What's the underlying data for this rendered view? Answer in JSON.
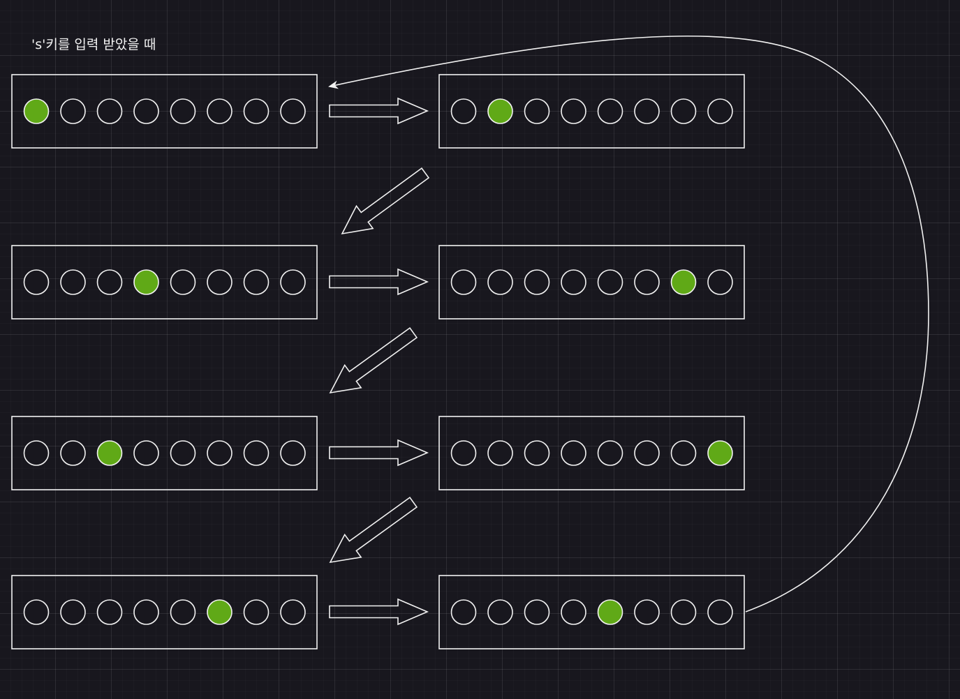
{
  "title": "'s'키를 입력 받았을 때",
  "led_count": 8,
  "colors": {
    "background": "#18171e",
    "line": "#f2f2f2",
    "led_on": "#60a917",
    "led_on_stroke": "#2d7600",
    "led_off": "#18171e"
  },
  "panels": [
    {
      "id": "step-1",
      "active_led": 1
    },
    {
      "id": "step-2",
      "active_led": 2
    },
    {
      "id": "step-3",
      "active_led": 4
    },
    {
      "id": "step-4",
      "active_led": 7
    },
    {
      "id": "step-5",
      "active_led": 3
    },
    {
      "id": "step-6",
      "active_led": 8
    },
    {
      "id": "step-7",
      "active_led": 6
    },
    {
      "id": "step-8",
      "active_led": 5
    }
  ],
  "flow": [
    {
      "from": "step-1",
      "to": "step-2"
    },
    {
      "from": "step-2",
      "to": "step-3"
    },
    {
      "from": "step-3",
      "to": "step-4"
    },
    {
      "from": "step-4",
      "to": "step-5"
    },
    {
      "from": "step-5",
      "to": "step-6"
    },
    {
      "from": "step-6",
      "to": "step-7"
    },
    {
      "from": "step-7",
      "to": "step-8"
    },
    {
      "from": "step-8",
      "to": "step-1"
    }
  ]
}
